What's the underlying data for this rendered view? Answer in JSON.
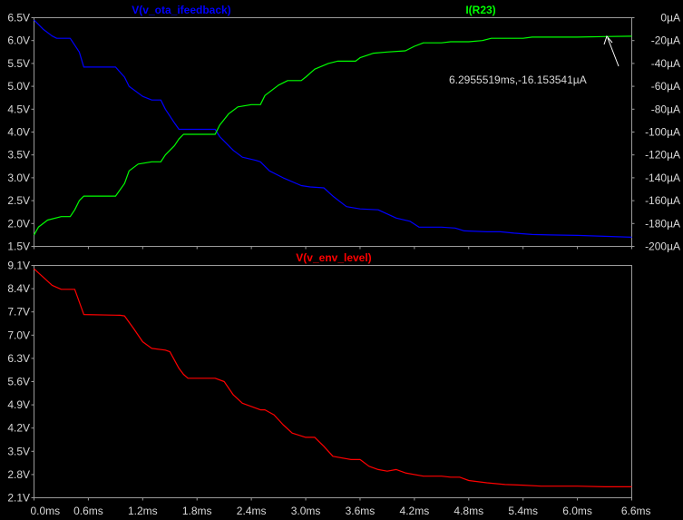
{
  "chart_data": [
    {
      "type": "line",
      "panel": "top",
      "grid": false,
      "x_ticks": [
        "0.0ms",
        "0.6ms",
        "1.2ms",
        "1.8ms",
        "2.4ms",
        "3.0ms",
        "3.6ms",
        "4.2ms",
        "4.8ms",
        "5.4ms",
        "6.0ms",
        "6.6ms"
      ],
      "xlim": [
        0,
        6.6
      ],
      "left_axis": {
        "ylim": [
          1.5,
          6.5
        ],
        "ticks": [
          "6.5V",
          "6.0V",
          "5.5V",
          "5.0V",
          "4.5V",
          "4.0V",
          "3.5V",
          "3.0V",
          "2.5V",
          "2.0V",
          "1.5V"
        ]
      },
      "right_axis": {
        "ylim": [
          -200,
          0
        ],
        "ticks": [
          "0µA",
          "-20µA",
          "-40µA",
          "-60µA",
          "-80µA",
          "-100µA",
          "-120µA",
          "-140µA",
          "-160µA",
          "-180µA",
          "-200µA"
        ]
      },
      "series": [
        {
          "name": "V(v_ota_ifeedback)",
          "color": "#0000ff",
          "axis": "left",
          "x": [
            0.0,
            0.1,
            0.2,
            0.25,
            0.4,
            0.5,
            0.55,
            0.9,
            1.0,
            1.05,
            1.2,
            1.3,
            1.4,
            1.45,
            1.55,
            1.6,
            2.0,
            2.05,
            2.2,
            2.3,
            2.45,
            2.5,
            2.6,
            2.75,
            2.95,
            3.05,
            3.2,
            3.3,
            3.45,
            3.6,
            3.8,
            4.0,
            4.15,
            4.25,
            4.5,
            4.65,
            4.75,
            5.0,
            5.15,
            5.3,
            5.5,
            5.7,
            6.0,
            6.3,
            6.6
          ],
          "y": [
            6.45,
            6.25,
            6.1,
            6.05,
            6.05,
            5.75,
            5.42,
            5.42,
            5.2,
            5.0,
            4.78,
            4.7,
            4.7,
            4.5,
            4.2,
            4.06,
            4.06,
            3.9,
            3.6,
            3.45,
            3.38,
            3.35,
            3.15,
            3.0,
            2.83,
            2.8,
            2.78,
            2.6,
            2.37,
            2.32,
            2.3,
            2.12,
            2.05,
            1.92,
            1.92,
            1.9,
            1.84,
            1.82,
            1.82,
            1.79,
            1.76,
            1.75,
            1.74,
            1.72,
            1.7
          ]
        },
        {
          "name": "I(R23)",
          "color": "#00ff00",
          "axis": "right",
          "x": [
            0.0,
            0.05,
            0.15,
            0.3,
            0.4,
            0.45,
            0.5,
            0.55,
            0.9,
            1.0,
            1.05,
            1.15,
            1.3,
            1.4,
            1.45,
            1.55,
            1.6,
            1.65,
            2.0,
            2.05,
            2.15,
            2.25,
            2.4,
            2.5,
            2.55,
            2.7,
            2.8,
            2.95,
            3.0,
            3.1,
            3.25,
            3.35,
            3.55,
            3.6,
            3.75,
            3.9,
            4.1,
            4.2,
            4.3,
            4.5,
            4.6,
            4.8,
            4.95,
            5.05,
            5.2,
            5.4,
            5.5,
            5.7,
            6.0,
            6.3,
            6.6
          ],
          "y": [
            -190,
            -183,
            -177,
            -174,
            -174,
            -168,
            -160,
            -156,
            -156,
            -145,
            -134,
            -128,
            -126,
            -126,
            -120,
            -112,
            -106,
            -102,
            -102,
            -94,
            -84,
            -78,
            -76,
            -76,
            -68,
            -59,
            -55,
            -55,
            -52,
            -45,
            -40,
            -38,
            -38,
            -35,
            -31,
            -30,
            -29,
            -25,
            -22,
            -22,
            -21,
            -21,
            -20,
            -18,
            -18,
            -18,
            -17,
            -17,
            -17,
            -16.5,
            -16.2
          ]
        }
      ],
      "annotation": "6.2955519ms,-16.153541µA"
    },
    {
      "type": "line",
      "panel": "bottom",
      "grid": false,
      "x_ticks": [
        "0.0ms",
        "0.6ms",
        "1.2ms",
        "1.8ms",
        "2.4ms",
        "3.0ms",
        "3.6ms",
        "4.2ms",
        "4.8ms",
        "5.4ms",
        "6.0ms",
        "6.6ms"
      ],
      "xlim": [
        0,
        6.6
      ],
      "left_axis": {
        "ylim": [
          2.1,
          9.1
        ],
        "ticks": [
          "9.1V",
          "8.4V",
          "7.7V",
          "7.0V",
          "6.3V",
          "5.6V",
          "4.9V",
          "4.2V",
          "3.5V",
          "2.8V",
          "2.1V"
        ]
      },
      "series": [
        {
          "name": "V(v_env_level)",
          "color": "#ff0000",
          "axis": "left",
          "x": [
            0.0,
            0.1,
            0.2,
            0.3,
            0.45,
            0.5,
            0.55,
            0.95,
            1.0,
            1.1,
            1.2,
            1.3,
            1.45,
            1.5,
            1.6,
            1.65,
            1.7,
            2.0,
            2.1,
            2.2,
            2.3,
            2.5,
            2.55,
            2.65,
            2.75,
            2.85,
            3.0,
            3.1,
            3.2,
            3.3,
            3.5,
            3.6,
            3.7,
            3.8,
            3.9,
            4.0,
            4.1,
            4.3,
            4.5,
            4.6,
            4.7,
            4.8,
            5.0,
            5.2,
            5.4,
            5.6,
            6.0,
            6.3,
            6.6
          ],
          "y": [
            9.0,
            8.75,
            8.5,
            8.38,
            8.38,
            8.0,
            7.62,
            7.6,
            7.58,
            7.2,
            6.8,
            6.6,
            6.55,
            6.5,
            6.0,
            5.82,
            5.7,
            5.7,
            5.6,
            5.2,
            4.95,
            4.75,
            4.75,
            4.6,
            4.3,
            4.05,
            3.92,
            3.92,
            3.65,
            3.35,
            3.25,
            3.25,
            3.05,
            2.95,
            2.9,
            2.95,
            2.85,
            2.75,
            2.75,
            2.72,
            2.72,
            2.62,
            2.55,
            2.5,
            2.48,
            2.45,
            2.45,
            2.43,
            2.43
          ]
        }
      ]
    }
  ]
}
